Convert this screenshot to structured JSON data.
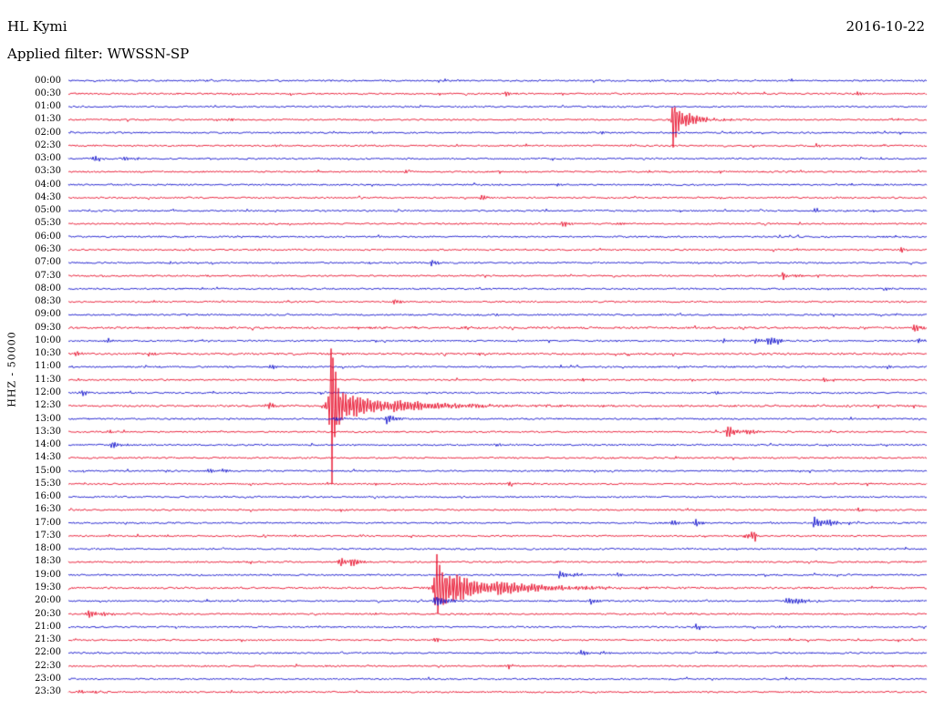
{
  "header": {
    "station": "HL Kymi",
    "date": "2016-10-22",
    "filter_label": "Applied filter: WWSSN-SP"
  },
  "axis": {
    "left_label": "HHZ - 50000"
  },
  "colors": {
    "red": "#e8112d",
    "blue": "#1515cd",
    "text": "#000000",
    "background": "#ffffff"
  },
  "chart_data": {
    "type": "line",
    "title": "HL Kymi",
    "date": "2016-10-22",
    "filter": "WWSSN-SP",
    "channel": "HHZ",
    "scale_label": "50000",
    "minutes_per_row": 30,
    "rows": [
      {
        "label": "00:00",
        "color": "blue",
        "events": []
      },
      {
        "label": "00:30",
        "color": "red",
        "events": [
          {
            "x": 0.51,
            "a": 3,
            "d": 6
          },
          {
            "x": 0.919,
            "a": 2.5,
            "d": 4
          }
        ]
      },
      {
        "label": "01:00",
        "color": "blue",
        "events": []
      },
      {
        "label": "01:30",
        "color": "red",
        "events": [
          {
            "x": 0.186,
            "a": 2,
            "d": 4
          },
          {
            "x": 0.7045,
            "a": 30,
            "d": 2.5,
            "r": 1
          },
          {
            "x": 0.708,
            "a": 14,
            "d": 9,
            "r": 3
          },
          {
            "x": 0.72,
            "a": 5,
            "d": 25
          }
        ]
      },
      {
        "label": "02:00",
        "color": "blue",
        "events": [
          {
            "x": 0.354,
            "a": 2,
            "d": 4
          },
          {
            "x": 0.622,
            "a": 2,
            "d": 3
          }
        ]
      },
      {
        "label": "02:30",
        "color": "red",
        "events": [
          {
            "x": 0.24,
            "a": 2,
            "d": 3
          },
          {
            "x": 0.654,
            "a": 2,
            "d": 3
          },
          {
            "x": 0.871,
            "a": 2.5,
            "d": 4
          }
        ]
      },
      {
        "label": "03:00",
        "color": "blue",
        "events": [
          {
            "x": 0.03,
            "a": 3.5,
            "d": 10
          },
          {
            "x": 0.065,
            "a": 2,
            "d": 15
          }
        ]
      },
      {
        "label": "03:30",
        "color": "red",
        "events": [
          {
            "x": 0.393,
            "a": 1.5,
            "d": 3
          }
        ]
      },
      {
        "label": "04:00",
        "color": "blue",
        "events": [
          {
            "x": 0.57,
            "a": 1.5,
            "d": 3
          }
        ]
      },
      {
        "label": "04:30",
        "color": "red",
        "events": [
          {
            "x": 0.481,
            "a": 4,
            "d": 5
          },
          {
            "x": 0.76,
            "a": 1.5,
            "d": 3
          }
        ]
      },
      {
        "label": "05:00",
        "color": "blue",
        "events": [
          {
            "x": 0.869,
            "a": 2,
            "d": 3
          }
        ]
      },
      {
        "label": "05:30",
        "color": "red",
        "events": [
          {
            "x": 0.577,
            "a": 4,
            "d": 6
          },
          {
            "x": 0.64,
            "a": 2,
            "d": 8
          }
        ]
      },
      {
        "label": "06:00",
        "color": "blue",
        "events": [
          {
            "x": 0.2,
            "a": 1.5,
            "d": 3
          }
        ]
      },
      {
        "label": "06:30",
        "color": "red",
        "events": [
          {
            "x": 0.97,
            "a": 3.5,
            "d": 5
          }
        ]
      },
      {
        "label": "07:00",
        "color": "blue",
        "events": [
          {
            "x": 0.12,
            "a": 2,
            "d": 3
          },
          {
            "x": 0.423,
            "a": 4,
            "d": 6
          }
        ]
      },
      {
        "label": "07:30",
        "color": "red",
        "events": [
          {
            "x": 0.832,
            "a": 5,
            "d": 4
          },
          {
            "x": 0.845,
            "a": 2,
            "d": 10
          }
        ]
      },
      {
        "label": "08:00",
        "color": "blue",
        "events": [
          {
            "x": 0.954,
            "a": 2.5,
            "d": 4
          }
        ]
      },
      {
        "label": "08:30",
        "color": "red",
        "events": [
          {
            "x": 0.38,
            "a": 3.5,
            "d": 5
          }
        ]
      },
      {
        "label": "09:00",
        "color": "blue",
        "events": [
          {
            "x": 0.5,
            "a": 1.5,
            "d": 3
          }
        ]
      },
      {
        "label": "09:30",
        "color": "red",
        "noise": 1.25,
        "events": [
          {
            "x": 0.465,
            "a": 2,
            "d": 4
          },
          {
            "x": 0.986,
            "a": 5,
            "d": 6
          }
        ]
      },
      {
        "label": "10:00",
        "color": "blue",
        "events": [
          {
            "x": 0.046,
            "a": 3,
            "d": 5
          },
          {
            "x": 0.763,
            "a": 3,
            "d": 4
          },
          {
            "x": 0.8,
            "a": 3,
            "d": 6
          },
          {
            "x": 0.816,
            "a": 5,
            "d": 10
          },
          {
            "x": 0.99,
            "a": 3,
            "d": 5
          }
        ]
      },
      {
        "label": "10:30",
        "color": "red",
        "noise": 1.2,
        "events": [
          {
            "x": 0.01,
            "a": 3,
            "d": 5
          },
          {
            "x": 0.094,
            "a": 3,
            "d": 5
          }
        ]
      },
      {
        "label": "11:00",
        "color": "blue",
        "events": [
          {
            "x": 0.237,
            "a": 3.5,
            "d": 5
          },
          {
            "x": 0.955,
            "a": 2.5,
            "d": 4
          }
        ]
      },
      {
        "label": "11:30",
        "color": "red",
        "events": [
          {
            "x": 0.6,
            "a": 2,
            "d": 3
          },
          {
            "x": 0.88,
            "a": 2.5,
            "d": 4
          }
        ]
      },
      {
        "label": "12:00",
        "color": "blue",
        "events": [
          {
            "x": 0.016,
            "a": 3.5,
            "d": 6
          },
          {
            "x": 0.755,
            "a": 2,
            "d": 3
          }
        ]
      },
      {
        "label": "12:30",
        "color": "red",
        "noise": 1.2,
        "events": [
          {
            "x": 0.234,
            "a": 4,
            "d": 6
          },
          {
            "x": 0.306,
            "a": 100,
            "d": 3,
            "r": 1
          },
          {
            "x": 0.309,
            "a": 22,
            "d": 22,
            "r": 5
          },
          {
            "x": 0.33,
            "a": 8,
            "d": 50
          },
          {
            "x": 0.38,
            "a": 4,
            "d": 80
          }
        ]
      },
      {
        "label": "13:00",
        "color": "blue",
        "events": [
          {
            "x": 0.31,
            "a": 3,
            "d": 10
          },
          {
            "x": 0.371,
            "a": 6,
            "d": 8
          }
        ]
      },
      {
        "label": "13:30",
        "color": "red",
        "events": [
          {
            "x": 0.048,
            "a": 2,
            "d": 4
          },
          {
            "x": 0.768,
            "a": 8,
            "d": 7
          },
          {
            "x": 0.79,
            "a": 3,
            "d": 15
          }
        ]
      },
      {
        "label": "14:00",
        "color": "blue",
        "events": [
          {
            "x": 0.051,
            "a": 5,
            "d": 7
          },
          {
            "x": 0.5,
            "a": 2,
            "d": 3
          }
        ]
      },
      {
        "label": "14:30",
        "color": "red",
        "events": [
          {
            "x": 0.5,
            "a": 2,
            "d": 4
          }
        ]
      },
      {
        "label": "15:00",
        "color": "blue",
        "events": [
          {
            "x": 0.163,
            "a": 3,
            "d": 5
          },
          {
            "x": 0.178,
            "a": 2,
            "d": 8
          }
        ]
      },
      {
        "label": "15:30",
        "color": "red",
        "events": [
          {
            "x": 0.513,
            "a": 2.5,
            "d": 4
          },
          {
            "x": 0.93,
            "a": 2,
            "d": 3
          }
        ]
      },
      {
        "label": "16:00",
        "color": "blue",
        "events": []
      },
      {
        "label": "16:30",
        "color": "red",
        "events": [
          {
            "x": 0.92,
            "a": 2,
            "d": 3
          }
        ]
      },
      {
        "label": "17:00",
        "color": "blue",
        "events": [
          {
            "x": 0.705,
            "a": 4,
            "d": 4
          },
          {
            "x": 0.731,
            "a": 5,
            "d": 5
          },
          {
            "x": 0.869,
            "a": 7,
            "d": 8
          },
          {
            "x": 0.885,
            "a": 3,
            "d": 14
          }
        ]
      },
      {
        "label": "17:30",
        "color": "red",
        "events": [
          {
            "x": 0.8,
            "a": 6,
            "d": 2,
            "r": 8
          }
        ]
      },
      {
        "label": "18:00",
        "color": "blue",
        "events": []
      },
      {
        "label": "18:30",
        "color": "red",
        "events": [
          {
            "x": 0.317,
            "a": 7,
            "d": 5
          },
          {
            "x": 0.33,
            "a": 5,
            "d": 10
          }
        ]
      },
      {
        "label": "19:00",
        "color": "blue",
        "events": [
          {
            "x": 0.572,
            "a": 5,
            "d": 6
          },
          {
            "x": 0.59,
            "a": 2.5,
            "d": 10
          },
          {
            "x": 0.64,
            "a": 2,
            "d": 4
          }
        ]
      },
      {
        "label": "19:30",
        "color": "red",
        "noise": 1.2,
        "events": [
          {
            "x": 0.428,
            "a": 68,
            "d": 3,
            "r": 1
          },
          {
            "x": 0.432,
            "a": 26,
            "d": 18,
            "r": 4
          },
          {
            "x": 0.45,
            "a": 10,
            "d": 45
          },
          {
            "x": 0.5,
            "a": 5,
            "d": 70
          }
        ]
      },
      {
        "label": "20:00",
        "color": "blue",
        "events": [
          {
            "x": 0.428,
            "a": 7,
            "d": 10
          },
          {
            "x": 0.609,
            "a": 4,
            "d": 5
          },
          {
            "x": 0.837,
            "a": 5,
            "d": 8
          },
          {
            "x": 0.85,
            "a": 2.5,
            "d": 12
          }
        ]
      },
      {
        "label": "20:30",
        "color": "red",
        "events": [
          {
            "x": 0.024,
            "a": 6,
            "d": 6
          },
          {
            "x": 0.04,
            "a": 3,
            "d": 10
          },
          {
            "x": 0.726,
            "a": 2,
            "d": 3
          }
        ]
      },
      {
        "label": "21:00",
        "color": "blue",
        "events": [
          {
            "x": 0.731,
            "a": 4,
            "d": 5
          }
        ]
      },
      {
        "label": "21:30",
        "color": "red",
        "events": [
          {
            "x": 0.428,
            "a": 3,
            "d": 4
          }
        ]
      },
      {
        "label": "22:00",
        "color": "blue",
        "events": [
          {
            "x": 0.598,
            "a": 4,
            "d": 5
          },
          {
            "x": 0.62,
            "a": 2,
            "d": 8
          }
        ]
      },
      {
        "label": "22:30",
        "color": "red",
        "events": [
          {
            "x": 0.513,
            "a": 3,
            "d": 4
          }
        ]
      },
      {
        "label": "23:00",
        "color": "blue",
        "events": []
      },
      {
        "label": "23:30",
        "color": "red",
        "events": [
          {
            "x": 0.013,
            "a": 3,
            "d": 5
          },
          {
            "x": 0.03,
            "a": 2,
            "d": 8
          }
        ]
      }
    ]
  }
}
